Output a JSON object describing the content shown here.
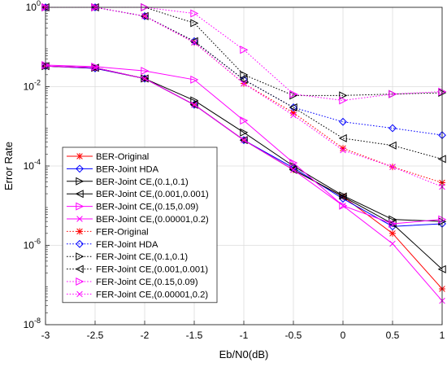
{
  "chart_data": {
    "type": "line",
    "title": "",
    "xlabel": "Eb/N0(dB)",
    "ylabel": "Error Rate",
    "xlim": [
      -3,
      1
    ],
    "ylim": [
      1e-08,
      1
    ],
    "yscale": "log",
    "grid": true,
    "legend_position": "bottom-left",
    "x": [
      -3,
      -2.5,
      -2,
      -1.5,
      -1,
      -0.5,
      0,
      0.5,
      1
    ],
    "x_ticks": [
      "-3",
      "-2.5",
      "-2",
      "-1.5",
      "-1",
      "-0.5",
      "0",
      "0.5",
      "1"
    ],
    "y_ticks": [
      {
        "value": 1,
        "base": "10",
        "exp": "0"
      },
      {
        "value": 0.01,
        "base": "10",
        "exp": "-2"
      },
      {
        "value": 0.0001,
        "base": "10",
        "exp": "-4"
      },
      {
        "value": 1e-06,
        "base": "10",
        "exp": "-6"
      },
      {
        "value": 1e-08,
        "base": "10",
        "exp": "-8"
      }
    ],
    "series": [
      {
        "name": "BER-Original",
        "color": "#ff0000",
        "dash": "solid",
        "marker": "star",
        "values": [
          0.033,
          0.029,
          0.016,
          0.0035,
          0.00045,
          8e-05,
          1.7e-05,
          2e-06,
          8e-08
        ]
      },
      {
        "name": "BER-Joint HDA",
        "color": "#0000ff",
        "dash": "solid",
        "marker": "diamond",
        "values": [
          0.033,
          0.029,
          0.016,
          0.0035,
          0.00045,
          9e-05,
          1.5e-05,
          3e-06,
          3.5e-06
        ]
      },
      {
        "name": "BER-Joint CE,(0.1,0.1)",
        "color": "#000000",
        "dash": "solid",
        "marker": "triangle-right",
        "values": [
          0.033,
          0.03,
          0.016,
          0.0045,
          0.0007,
          0.0001,
          1.8e-05,
          4.5e-06,
          4e-06
        ]
      },
      {
        "name": "BER-Joint CE,(0.001,0.001)",
        "color": "#000000",
        "dash": "solid",
        "marker": "triangle-left",
        "values": [
          0.033,
          0.03,
          0.016,
          0.0035,
          0.00045,
          8e-05,
          1.7e-05,
          3.5e-06,
          2.5e-07
        ]
      },
      {
        "name": "BER-Joint CE,(0.15,0.09)",
        "color": "#ff00ff",
        "dash": "solid",
        "marker": "triangle-right",
        "values": [
          0.035,
          0.032,
          0.025,
          0.015,
          0.0014,
          0.00012,
          1e-05,
          3.5e-06,
          4.5e-06
        ]
      },
      {
        "name": "BER-Joint CE,(0.00001,0.2)",
        "color": "#ff00ff",
        "dash": "solid",
        "marker": "x",
        "values": [
          0.033,
          0.03,
          0.016,
          0.0035,
          0.00045,
          8e-05,
          1e-05,
          1.1e-06,
          4e-08
        ]
      },
      {
        "name": "FER-Original",
        "color": "#ff0000",
        "dash": "dotted",
        "marker": "star",
        "values": [
          1,
          1,
          0.6,
          0.13,
          0.012,
          0.0022,
          0.00028,
          9.5e-05,
          3.8e-05
        ]
      },
      {
        "name": "FER-Joint HDA",
        "color": "#0000ff",
        "dash": "dotted",
        "marker": "diamond",
        "values": [
          1,
          1,
          0.6,
          0.14,
          0.015,
          0.003,
          0.0013,
          0.0009,
          0.0006
        ]
      },
      {
        "name": "FER-Joint CE,(0.1,0.1)",
        "color": "#000000",
        "dash": "dotted",
        "marker": "triangle-right",
        "values": [
          1,
          1,
          1,
          0.4,
          0.02,
          0.006,
          0.006,
          0.0065,
          0.007
        ]
      },
      {
        "name": "FER-Joint CE,(0.001,0.001)",
        "color": "#000000",
        "dash": "dotted",
        "marker": "triangle-left",
        "values": [
          1,
          1,
          0.6,
          0.14,
          0.015,
          0.003,
          0.0005,
          0.00033,
          0.00015
        ]
      },
      {
        "name": "FER-Joint CE,(0.15,0.09)",
        "color": "#ff00ff",
        "dash": "dotted",
        "marker": "triangle-right",
        "values": [
          1,
          1,
          1,
          0.7,
          0.085,
          0.0065,
          0.0045,
          0.0065,
          0.0075
        ]
      },
      {
        "name": "FER-Joint CE,(0.00001,0.2)",
        "color": "#ff00ff",
        "dash": "dotted",
        "marker": "x",
        "values": [
          1,
          1,
          0.6,
          0.13,
          0.012,
          0.0019,
          0.00025,
          9.5e-05,
          3e-05
        ]
      }
    ]
  }
}
